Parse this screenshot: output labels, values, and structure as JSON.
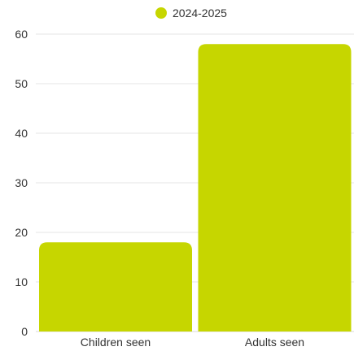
{
  "chart_data": {
    "type": "bar",
    "categories": [
      "Children seen",
      "Adults seen"
    ],
    "series": [
      {
        "name": "2024-2025",
        "values": [
          18,
          58
        ],
        "color": "#c6d600"
      }
    ],
    "ylim": [
      0,
      60
    ],
    "yticks": [
      "0",
      "10",
      "20",
      "30",
      "40",
      "50",
      "60"
    ],
    "grid": true,
    "legend": "top-center"
  }
}
